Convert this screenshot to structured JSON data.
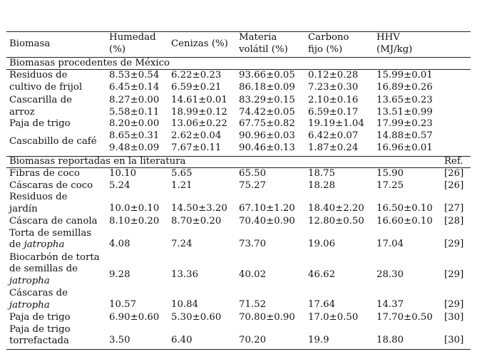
{
  "table": {
    "headers": [
      {
        "lines": [
          "Biomasa"
        ]
      },
      {
        "lines": [
          "Humedad",
          "(%)"
        ]
      },
      {
        "lines": [
          "Cenizas (%)"
        ]
      },
      {
        "lines": [
          "Materia",
          "volátil (%)"
        ]
      },
      {
        "lines": [
          "Carbono",
          "fijo (%)"
        ]
      },
      {
        "lines": [
          "HHV",
          "(MJ/kg)"
        ]
      },
      {
        "lines": [
          ""
        ]
      }
    ],
    "section_mexico": "Biomasas procedentes de México",
    "mexico_rows": [
      {
        "name": [
          "Residuos de",
          "cultivo de frijol"
        ],
        "values": [
          [
            "8.53±0.54",
            "6.45±0.14"
          ],
          [
            "6.22±0.23",
            "6.59±0.21"
          ],
          [
            "93.66±0.05",
            "86.18±0.09"
          ],
          [
            "0.12±0.28",
            "7.23±0.30"
          ],
          [
            "15.99±0.01",
            "16.89±0.26"
          ]
        ]
      },
      {
        "name": [
          "Cascarilla de",
          "arroz"
        ],
        "values": [
          [
            "8.27±0.00",
            "5.58±0.11"
          ],
          [
            "14.61±0.01",
            "18.99±0.12"
          ],
          [
            "83.29±0.15",
            "74.42±0.05"
          ],
          [
            "2.10±0.16",
            "6.59±0.17"
          ],
          [
            "13.65±0.23",
            "13.51±0.99"
          ]
        ]
      },
      {
        "name": [
          "Paja de trigo"
        ],
        "values": [
          [
            "8.20±0.00"
          ],
          [
            "13.06±0.22"
          ],
          [
            "67.75±0.82"
          ],
          [
            "19.19±1.04"
          ],
          [
            "17.99±0.23"
          ]
        ]
      },
      {
        "name": [
          "Cascabillo de café"
        ],
        "values": [
          [
            "8.65±0.31",
            "9.48±0.09"
          ],
          [
            "2.62±0.04",
            "7.67±0.11"
          ],
          [
            "90.96±0.03",
            "90.46±0.13"
          ],
          [
            "6.42±0.07",
            "1.87±0.24"
          ],
          [
            "14.88±0.57",
            "16.96±0.01"
          ]
        ]
      }
    ],
    "section_lit": "Biomasas reportadas en la literatura",
    "ref_header": "Ref.",
    "lit_rows": [
      {
        "name": [
          [
            "Fibras de coco"
          ]
        ],
        "values": [
          "10.10",
          "5.65",
          "65.50",
          "18.75",
          "15.90"
        ],
        "ref": "[26]"
      },
      {
        "name": [
          [
            "Cáscaras de coco"
          ]
        ],
        "values": [
          "5.24",
          "1.21",
          "75.27",
          "18.28",
          "17.25"
        ],
        "ref": "[26]"
      },
      {
        "name": [
          [
            "Residuos de"
          ],
          [
            "jardín"
          ]
        ],
        "values": [
          "10.0±0.10",
          "14.50±3.20",
          "67.10±1.20",
          "18.40±2.20",
          "16.50±0.10"
        ],
        "ref": "[27]"
      },
      {
        "name": [
          [
            "Cáscara de canola"
          ]
        ],
        "values": [
          "8.10±0.20",
          "8.70±0.20",
          "70.40±0.90",
          "12.80±0.50",
          "16.60±0.10"
        ],
        "ref": "[28]"
      },
      {
        "name": [
          [
            "Torta de semillas"
          ],
          [
            "de ",
            "jatropha"
          ]
        ],
        "values": [
          "4.08",
          "7.24",
          "73.70",
          "19.06",
          "17.04"
        ],
        "ref": "[29]"
      },
      {
        "name": [
          [
            "Biocarbón de torta"
          ],
          [
            "de semillas de"
          ],
          [
            "",
            "jatropha"
          ]
        ],
        "values": [
          "9.28",
          "13.36",
          "40.02",
          "46.62",
          "28.30"
        ],
        "ref": "[29]"
      },
      {
        "name": [
          [
            "Cáscaras de"
          ],
          [
            "",
            "jatropha"
          ]
        ],
        "values": [
          "10.57",
          "10.84",
          "71.52",
          "17.64",
          "14.37"
        ],
        "ref": "[29]"
      },
      {
        "name": [
          [
            "Paja de trigo"
          ]
        ],
        "values": [
          "6.90±0.60",
          "5.30±0.60",
          "70.80±0.90",
          "17.0±0.50",
          "17.70±0.50"
        ],
        "ref": "[30]"
      },
      {
        "name": [
          [
            "Paja de trigo"
          ],
          [
            "torrefactada"
          ]
        ],
        "values": [
          "3.50",
          "6.40",
          "70.20",
          "19.9",
          "18.80"
        ],
        "ref": "[30]"
      }
    ]
  }
}
